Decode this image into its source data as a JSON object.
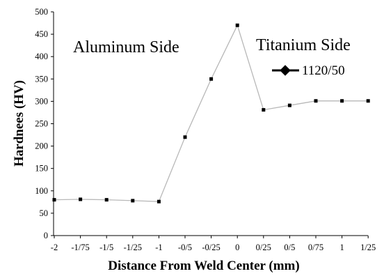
{
  "chart_data": {
    "type": "line",
    "xlabel": "Distance From Weld Center (mm)",
    "ylabel": "Hardnees (HV)",
    "categories": [
      "-2",
      "-1/75",
      "-1/5",
      "-1/25",
      "-1",
      "-0/5",
      "-0/25",
      "0",
      "0/25",
      "0/5",
      "0/75",
      "1",
      "1/25"
    ],
    "series": [
      {
        "name": "1120/50",
        "values": [
          80,
          81,
          80,
          78,
          76,
          220,
          350,
          470,
          281,
          291,
          301,
          301,
          301
        ],
        "color": "#b8b8b8",
        "marker_color": "#000000",
        "marker": "square"
      }
    ],
    "ylim": [
      0,
      500
    ],
    "yticks": [
      "0",
      "50",
      "100",
      "150",
      "200",
      "250",
      "300",
      "350",
      "400",
      "450",
      "500"
    ],
    "grid": false,
    "legend": "top-right",
    "annotations": [
      "Aluminum Side",
      "Titanium Side"
    ]
  }
}
